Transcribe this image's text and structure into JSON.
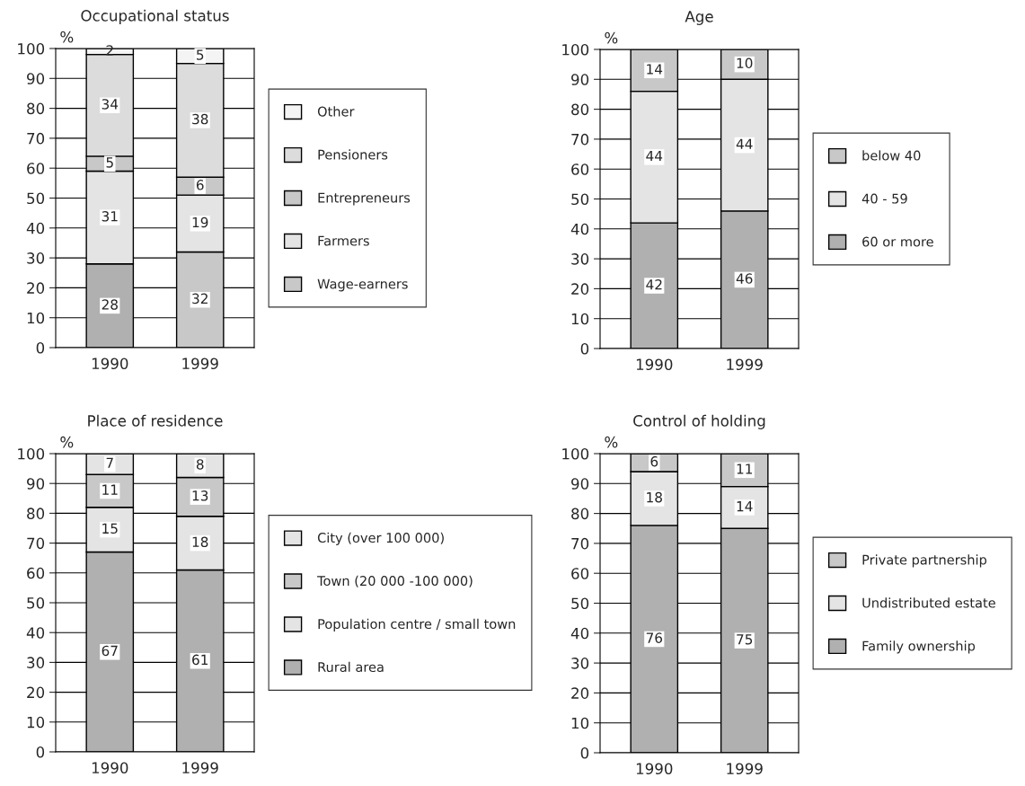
{
  "chart_data": [
    {
      "type": "bar",
      "stacked": true,
      "title": "Occupational status",
      "ylabel": "%",
      "categories": [
        "1990",
        "1999"
      ],
      "ylim": [
        0,
        100
      ],
      "yticks": [
        0,
        10,
        20,
        30,
        40,
        50,
        60,
        70,
        80,
        90,
        100
      ],
      "grid": "y",
      "legend": "right",
      "data_labels": true,
      "series": [
        {
          "name": "Wage-earners",
          "color": "#c8c8c8",
          "colors": [
            "#b0b0b0",
            "#c8c8c8"
          ],
          "values": [
            28,
            32
          ]
        },
        {
          "name": "Farmers",
          "color": "#e4e4e4",
          "values": [
            31,
            19
          ]
        },
        {
          "name": "Entrepreneurs",
          "color": "#c8c8c8",
          "values": [
            5,
            6
          ]
        },
        {
          "name": "Pensioners",
          "color": "#dcdcdc",
          "values": [
            34,
            38
          ]
        },
        {
          "name": "Other",
          "color": "#f4f4f4",
          "values": [
            2,
            5
          ]
        }
      ]
    },
    {
      "type": "bar",
      "stacked": true,
      "title": "Age",
      "ylabel": "%",
      "categories": [
        "1990",
        "1999"
      ],
      "ylim": [
        0,
        100
      ],
      "yticks": [
        0,
        10,
        20,
        30,
        40,
        50,
        60,
        70,
        80,
        90,
        100
      ],
      "grid": "y",
      "legend": "right",
      "data_labels": true,
      "series": [
        {
          "name": "60 or more",
          "color": "#b0b0b0",
          "values": [
            42,
            46
          ]
        },
        {
          "name": "40 - 59",
          "color": "#e4e4e4",
          "values": [
            44,
            44
          ]
        },
        {
          "name": "below 40",
          "color": "#c8c8c8",
          "values": [
            14,
            10
          ]
        }
      ]
    },
    {
      "type": "bar",
      "stacked": true,
      "title": "Place of residence",
      "ylabel": "%",
      "categories": [
        "1990",
        "1999"
      ],
      "ylim": [
        0,
        100
      ],
      "yticks": [
        0,
        10,
        20,
        30,
        40,
        50,
        60,
        70,
        80,
        90,
        100
      ],
      "grid": "y",
      "legend": "right",
      "data_labels": true,
      "series": [
        {
          "name": "Rural area",
          "color": "#b0b0b0",
          "values": [
            67,
            61
          ]
        },
        {
          "name": "Population centre / small town",
          "color": "#e4e4e4",
          "values": [
            15,
            18
          ]
        },
        {
          "name": "Town (20 000 -100 000)",
          "color": "#c8c8c8",
          "values": [
            11,
            13
          ]
        },
        {
          "name": "City (over 100 000)",
          "color": "#e4e4e4",
          "values": [
            7,
            8
          ]
        }
      ]
    },
    {
      "type": "bar",
      "stacked": true,
      "title": "Control of holding",
      "ylabel": "%",
      "categories": [
        "1990",
        "1999"
      ],
      "ylim": [
        0,
        100
      ],
      "yticks": [
        0,
        10,
        20,
        30,
        40,
        50,
        60,
        70,
        80,
        90,
        100
      ],
      "grid": "y",
      "legend": "right",
      "data_labels": true,
      "series": [
        {
          "name": "Family ownership",
          "color": "#b0b0b0",
          "values": [
            76,
            75
          ]
        },
        {
          "name": "Undistributed estate",
          "color": "#e4e4e4",
          "values": [
            18,
            14
          ]
        },
        {
          "name": "Private partnership",
          "color": "#c8c8c8",
          "values": [
            6,
            11
          ]
        }
      ]
    }
  ]
}
